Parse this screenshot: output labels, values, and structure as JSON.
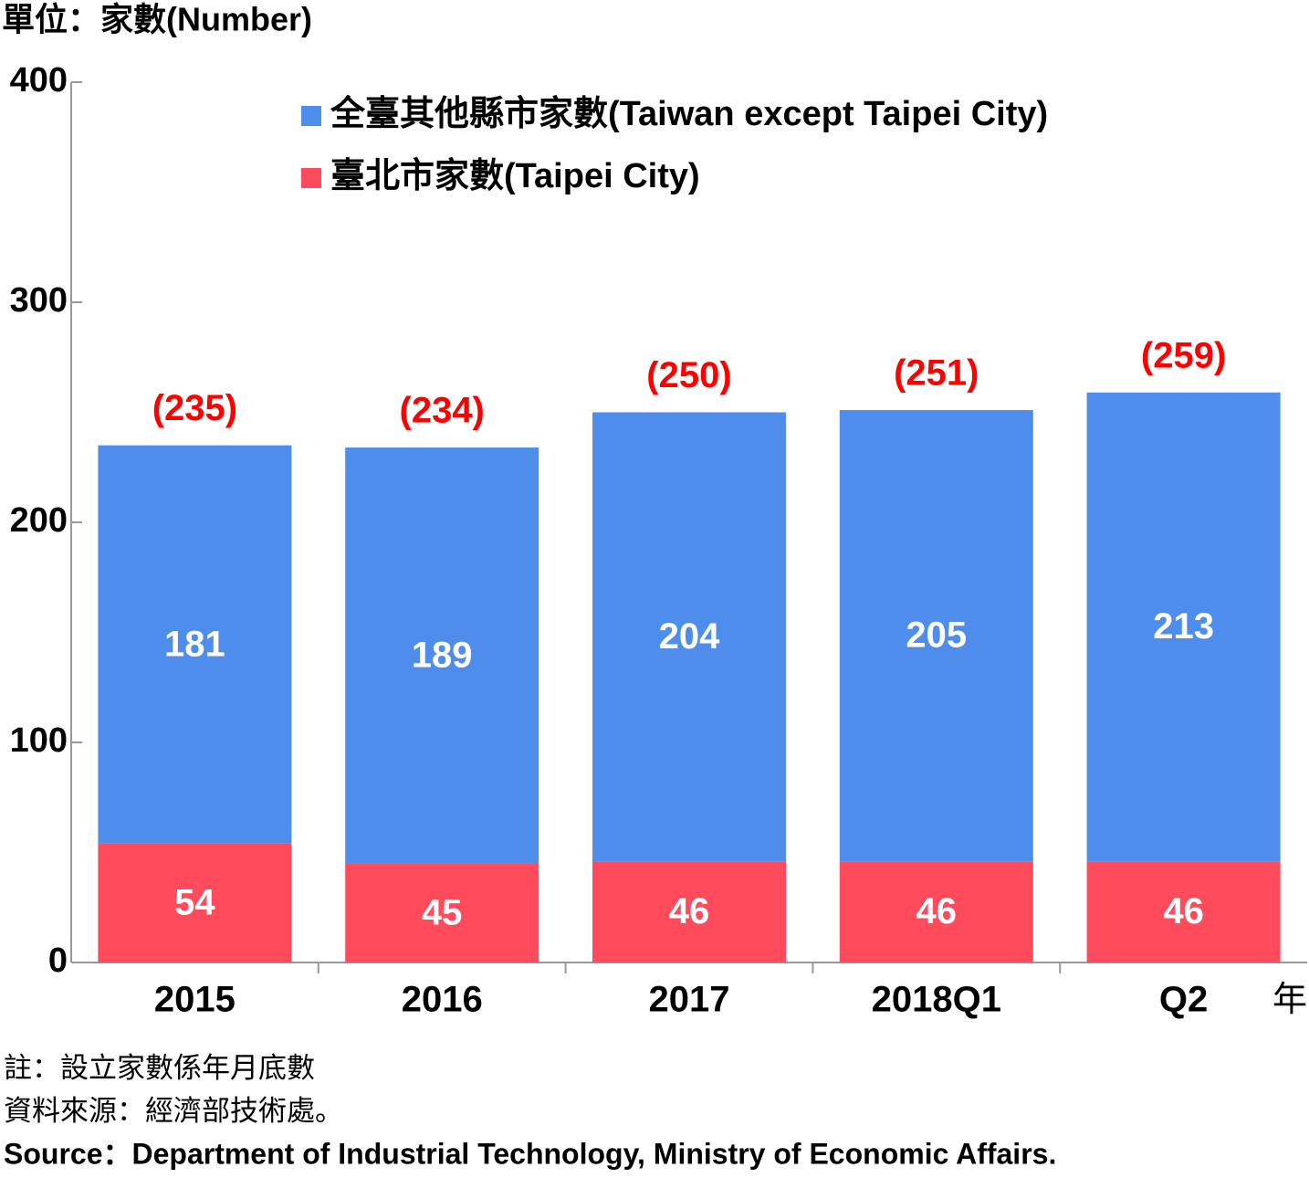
{
  "chart_data": {
    "type": "stacked_bar",
    "y_label": "單位：家數(Number)",
    "x_unit": "年",
    "categories": [
      "2015",
      "2016",
      "2017",
      "2018Q1",
      "Q2"
    ],
    "series": [
      {
        "name": "臺北市家數(Taipei City)",
        "color": "#ff4b5c",
        "values": [
          54,
          45,
          46,
          46,
          46
        ]
      },
      {
        "name": "全臺其他縣市家數(Taiwan except Taipei City)",
        "color": "#4f8ded",
        "values": [
          181,
          189,
          204,
          205,
          213
        ]
      }
    ],
    "totals": {
      "color": "#ff0000",
      "values": [
        235,
        234,
        250,
        251,
        259
      ],
      "value_labels": [
        "(235)",
        "(234)",
        "(250)",
        "(251)",
        "(259)"
      ]
    },
    "ylim": [
      0,
      400
    ],
    "yticks": [
      0,
      100,
      200,
      300,
      400
    ]
  },
  "footer": {
    "notes": [
      "註：設立家數係年月底數",
      "資料來源：經濟部技術處。",
      "Source：Department of Industrial Technology, Ministry of Economic Affairs."
    ]
  }
}
